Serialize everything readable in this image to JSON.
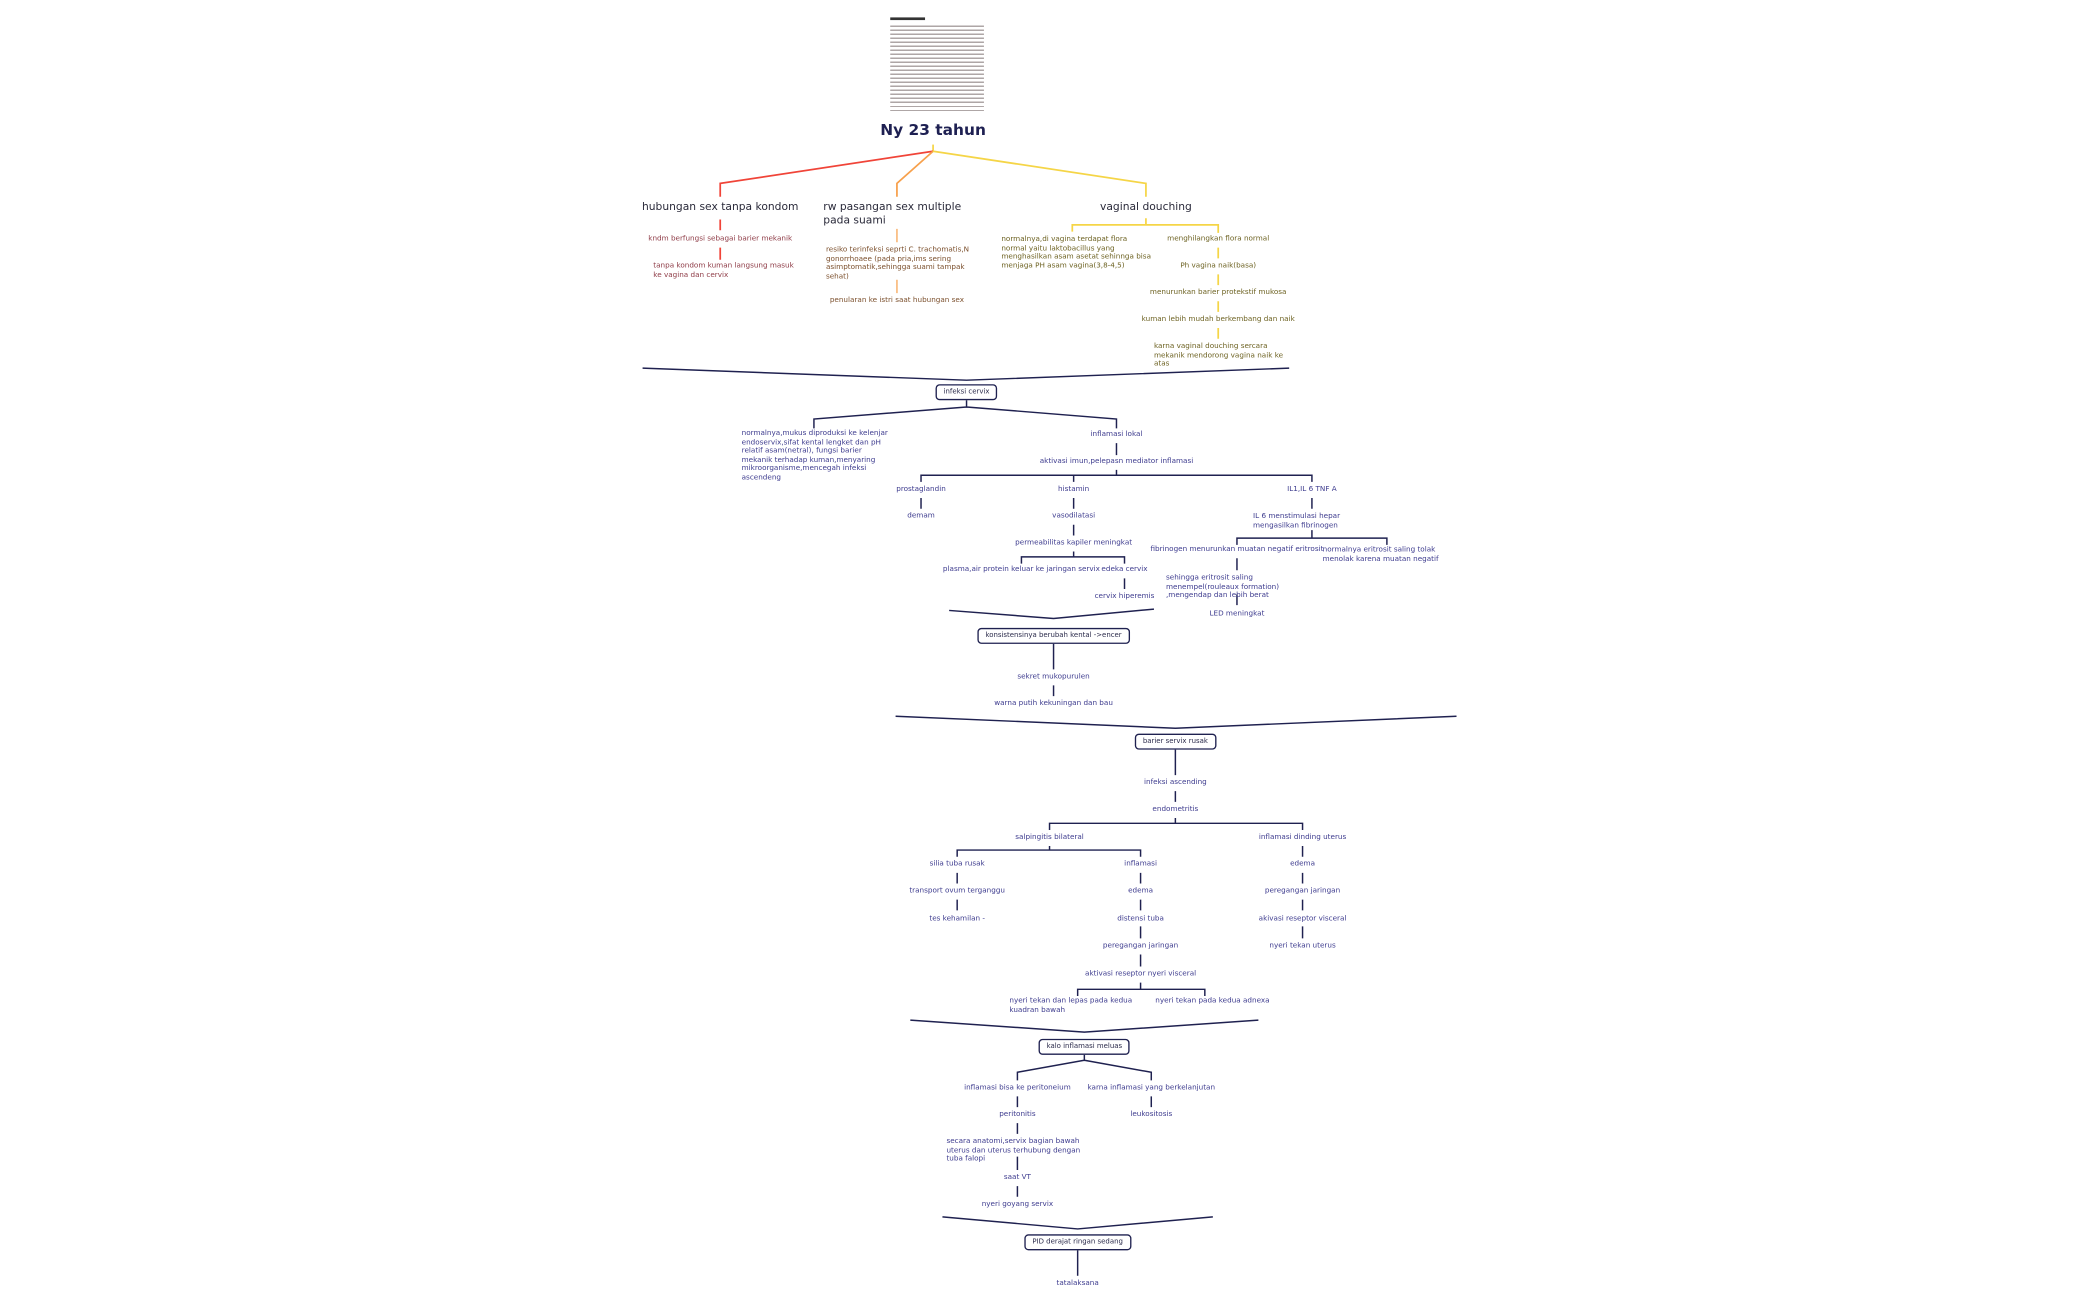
{
  "root": "Ny 23 tahun",
  "colors": {
    "red": "#f04438",
    "orange": "#f7a04b",
    "yellow": "#f5d547",
    "navy": "#1f2150",
    "node_text": "#3d3b8e"
  },
  "causes": {
    "condom": {
      "title": "hubungan sex tanpa kondom",
      "items": [
        "kndm berfungsi sebagai barier  mekanik",
        "tanpa kondom kuman langsung masuk ke vagina dan cervix"
      ]
    },
    "partner": {
      "title": "rw pasangan sex multiple pada suami",
      "items": [
        "resiko terinfeksi seprti C. trachomatis,N gonorrhoaee (pada pria,ims sering asimptomatik,sehingga suami tampak sehat)",
        "penularan ke istri saat hubungan sex"
      ]
    },
    "douching": {
      "title": "vaginal douching",
      "normal": "normalnya,di vagina terdapat flora normal yaitu laktobacillus yang menghasilkan asam asetat sehinnga bisa menjaga PH asam vagina(3,8-4,5)",
      "chain": [
        "menghilangkan flora normal",
        "Ph vagina naik(basa)",
        "menurunkan barier protekstif mukosa",
        "kuman lebih mudah berkembang dan naik",
        "karna vaginal douching sercara mekanik mendorong vagina naik ke atas"
      ]
    }
  },
  "cervix": {
    "box": "infeksi cervix",
    "normal": "normalnya,mukus diproduksi ke kelenjar endoservix,sifat kental lengket dan pH relatif asam(netral), fungsi  barier mekanik terhadap kuman,menyaring mikroorganisme,mencegah infeksi ascendeng",
    "inflamasi": "inflamasi lokal",
    "aktivasi": "aktivasi imun,pelepasn mediator inflamasi",
    "prostaglandin": [
      "prostaglandin",
      "demam"
    ],
    "histamin": [
      "histamin",
      "vasodilatasi",
      "permeabilitas kapiler meningkat"
    ],
    "histamin_left": "plasma,air protein keluar ke jaringan servix",
    "histamin_right": [
      "edeka  cervix",
      "cervix hiperemis"
    ],
    "il": [
      "IL1,IL 6 TNF A",
      "IL 6 menstimulasi hepar  mengasilkan fibrinogen"
    ],
    "il_left": [
      "fibrinogen menurunkan muatan negatif eritrosit",
      "sehingga eritrosit saling menempel(rouleaux formation) ,mengendap dan lebih berat",
      "LED meningkat"
    ],
    "il_right": "normalnya eritrosit saling tolak menolak karena muatan negatif"
  },
  "konsistensi": {
    "box": "konsistensinya berubah  kental ->encer",
    "chain": [
      "sekret mukopurulen",
      "warna putih kekuningan dan bau"
    ]
  },
  "barier": {
    "box": "barier servix rusak",
    "chain": [
      "infeksi  ascending",
      "endometritis"
    ],
    "salpingitis": "salpingitis bilateral",
    "silia": [
      "silia tuba rusak",
      "transport ovum terganggu",
      "tes kehamilan -"
    ],
    "inflamasi": [
      "inflamasi",
      "edema",
      "distensi tuba",
      "peregangan  jaringan",
      "aktivasi reseptor nyeri visceral"
    ],
    "nyeri": [
      "nyeri tekan dan lepas pada kedua kuadran bawah",
      "nyeri tekan pada kedua adnexa"
    ],
    "uterus": [
      "inflamasi dinding uterus",
      "edema",
      "peregangan jaringan",
      "akivasi reseptor visceral",
      "nyeri tekan uterus"
    ]
  },
  "meluas": {
    "box": "kalo inflamasi  meluas",
    "left": [
      "inflamasi bisa ke peritoneium",
      "peritonitis",
      "secara anatomi,servix bagian bawah uterus dan uterus terhubung dengan tuba falopi",
      "saat VT",
      "nyeri goyang servix"
    ],
    "right": [
      "karna inflamasi yang berkelanjutan",
      "leukositosis"
    ]
  },
  "pid": {
    "box": "PID derajat ringan sedang",
    "chain": [
      "tatalaksana"
    ]
  }
}
